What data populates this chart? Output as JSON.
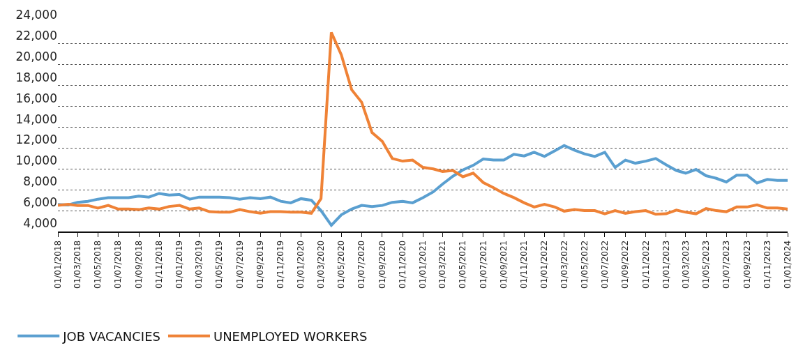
{
  "chart_data": {
    "type": "line",
    "x": [
      "2018-01",
      "2018-02",
      "2018-03",
      "2018-04",
      "2018-05",
      "2018-06",
      "2018-07",
      "2018-08",
      "2018-09",
      "2018-10",
      "2018-11",
      "2018-12",
      "2019-01",
      "2019-02",
      "2019-03",
      "2019-04",
      "2019-05",
      "2019-06",
      "2019-07",
      "2019-08",
      "2019-09",
      "2019-10",
      "2019-11",
      "2019-12",
      "2020-01",
      "2020-02",
      "2020-03",
      "2020-04",
      "2020-05",
      "2020-06",
      "2020-07",
      "2020-08",
      "2020-09",
      "2020-10",
      "2020-11",
      "2020-12",
      "2021-01",
      "2021-02",
      "2021-03",
      "2021-04",
      "2021-05",
      "2021-06",
      "2021-07",
      "2021-08",
      "2021-09",
      "2021-10",
      "2021-11",
      "2021-12",
      "2022-01",
      "2022-02",
      "2022-03",
      "2022-04",
      "2022-05",
      "2022-06",
      "2022-07",
      "2022-08",
      "2022-09",
      "2022-10",
      "2022-11",
      "2022-12",
      "2023-01",
      "2023-02",
      "2023-03",
      "2023-04",
      "2023-05",
      "2023-06",
      "2023-07",
      "2023-08",
      "2023-09",
      "2023-10",
      "2023-11",
      "2023-12",
      "2024-01"
    ],
    "series": [
      {
        "name": "JOB VACANCIES",
        "color": "#5a9fd0",
        "values": [
          6600,
          6550,
          6800,
          6900,
          7100,
          7250,
          7250,
          7250,
          7400,
          7300,
          7650,
          7500,
          7550,
          7100,
          7300,
          7300,
          7300,
          7250,
          7100,
          7250,
          7150,
          7300,
          6900,
          6750,
          7150,
          7000,
          6000,
          4600,
          5600,
          6150,
          6500,
          6400,
          6500,
          6800,
          6900,
          6750,
          7250,
          7800,
          8550,
          9300,
          9900,
          10350,
          10950,
          10850,
          10850,
          11400,
          11250,
          11600,
          11200,
          11750,
          12250,
          11800,
          11450,
          11200,
          11600,
          10150,
          10850,
          10550,
          10750,
          11000,
          10400,
          9850,
          9600,
          9950,
          9350,
          9100,
          8750,
          9400,
          9400,
          8650,
          9000,
          8900,
          8900
        ]
      },
      {
        "name": "UNEMPLOYED WORKERS",
        "color": "#ef8236",
        "values": [
          6500,
          6600,
          6500,
          6500,
          6250,
          6500,
          6150,
          6150,
          6100,
          6250,
          6150,
          6400,
          6500,
          6150,
          6250,
          5900,
          5850,
          5850,
          6100,
          5900,
          5750,
          5900,
          5900,
          5850,
          5850,
          5750,
          7150,
          23100,
          20950,
          17600,
          16400,
          13500,
          12650,
          11000,
          10750,
          10850,
          10150,
          10000,
          9750,
          9850,
          9250,
          9600,
          8700,
          8200,
          7650,
          7250,
          6750,
          6350,
          6600,
          6350,
          5950,
          6100,
          6000,
          6000,
          5700,
          6000,
          5750,
          5900,
          6000,
          5650,
          5700,
          6050,
          5850,
          5700,
          6200,
          6000,
          5900,
          6350,
          6350,
          6550,
          6250,
          6250,
          6150
        ]
      }
    ],
    "xlim": [
      "2018-01-01",
      "2024-01-01"
    ],
    "xticks": [
      {
        "value": "2018-01-01",
        "label": "01/01/2018"
      },
      {
        "value": "2018-03-01",
        "label": "01/03/2018"
      },
      {
        "value": "2018-05-01",
        "label": "01/05/2018"
      },
      {
        "value": "2018-07-01",
        "label": "01/07/2018"
      },
      {
        "value": "2018-09-01",
        "label": "01/09/2018"
      },
      {
        "value": "2018-11-01",
        "label": "01/11/2018"
      },
      {
        "value": "2019-01-01",
        "label": "01/01/2019"
      },
      {
        "value": "2019-03-01",
        "label": "01/03/2019"
      },
      {
        "value": "2019-05-01",
        "label": "01/05/2019"
      },
      {
        "value": "2019-07-01",
        "label": "01/07/2019"
      },
      {
        "value": "2019-09-01",
        "label": "01/09/2019"
      },
      {
        "value": "2019-11-01",
        "label": "01/11/2019"
      },
      {
        "value": "2020-01-01",
        "label": "01/01/2020"
      },
      {
        "value": "2020-03-01",
        "label": "01/03/2020"
      },
      {
        "value": "2020-05-01",
        "label": "01/05/2020"
      },
      {
        "value": "2020-07-01",
        "label": "01/07/2020"
      },
      {
        "value": "2020-09-01",
        "label": "01/09/2020"
      },
      {
        "value": "2020-11-01",
        "label": "01/11/2020"
      },
      {
        "value": "2021-01-01",
        "label": "01/01/2021"
      },
      {
        "value": "2021-03-01",
        "label": "01/03/2021"
      },
      {
        "value": "2021-05-01",
        "label": "01/05/2021"
      },
      {
        "value": "2021-07-01",
        "label": "01/07/2021"
      },
      {
        "value": "2021-09-01",
        "label": "01/09/2021"
      },
      {
        "value": "2021-11-01",
        "label": "01/11/2021"
      },
      {
        "value": "2022-01-01",
        "label": "01/01/2022"
      },
      {
        "value": "2022-03-01",
        "label": "01/03/2022"
      },
      {
        "value": "2022-05-01",
        "label": "01/05/2022"
      },
      {
        "value": "2022-07-01",
        "label": "01/07/2022"
      },
      {
        "value": "2022-09-01",
        "label": "01/09/2022"
      },
      {
        "value": "2022-11-01",
        "label": "01/11/2022"
      },
      {
        "value": "2023-01-01",
        "label": "01/01/2023"
      },
      {
        "value": "2023-03-01",
        "label": "01/03/2023"
      },
      {
        "value": "2023-05-01",
        "label": "01/05/2023"
      },
      {
        "value": "2023-07-01",
        "label": "01/07/2023"
      },
      {
        "value": "2023-09-01",
        "label": "01/09/2023"
      },
      {
        "value": "2023-11-01",
        "label": "01/11/2023"
      },
      {
        "value": "2024-01-01",
        "label": "01/01/2024"
      }
    ],
    "ylim": [
      4000,
      24000
    ],
    "yticks": [
      {
        "value": 4000,
        "label": "4,000"
      },
      {
        "value": 6000,
        "label": "6,000"
      },
      {
        "value": 8000,
        "label": "8,000"
      },
      {
        "value": 10000,
        "label": "10,000"
      },
      {
        "value": 12000,
        "label": "12,000"
      },
      {
        "value": 14000,
        "label": "14,000"
      },
      {
        "value": 16000,
        "label": "16,000"
      },
      {
        "value": 18000,
        "label": "18,000"
      },
      {
        "value": 20000,
        "label": "20,000"
      },
      {
        "value": 22000,
        "label": "22,000"
      },
      {
        "value": 24000,
        "label": "24,000"
      }
    ],
    "grid": "y",
    "legend": "bottom left",
    "marker": "none",
    "line_style": "solid"
  }
}
